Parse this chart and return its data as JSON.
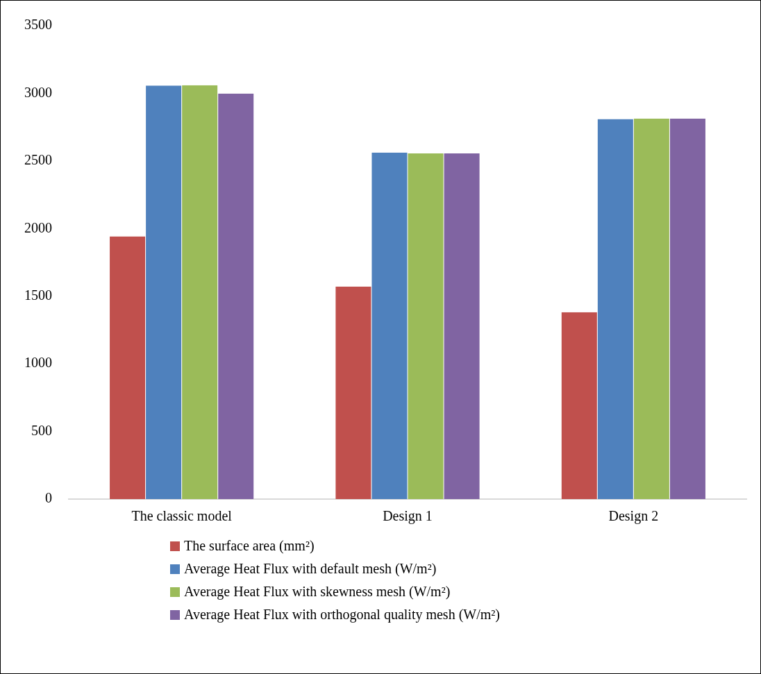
{
  "chart_data": {
    "type": "bar",
    "categories": [
      "The classic model",
      "Design 1",
      "Design 2"
    ],
    "series": [
      {
        "name": "The surface area (mm²)",
        "color": "#c0504d",
        "values": [
          1943,
          1572,
          1382
        ]
      },
      {
        "name": "Average Heat Flux with default mesh (W/m²)",
        "color": "#4f81bd",
        "values": [
          3057,
          2562,
          2810
        ]
      },
      {
        "name": "Average Heat Flux with skewness mesh (W/m²)",
        "color": "#9bbb59",
        "values": [
          3060,
          2556,
          2814
        ]
      },
      {
        "name": "Average Heat Flux with orthogonal quality mesh (W/m²)",
        "color": "#8064a2",
        "values": [
          2998,
          2556,
          2814
        ]
      }
    ],
    "ylim": [
      0,
      3500
    ],
    "yticks": [
      0,
      500,
      1000,
      1500,
      2000,
      2500,
      3000,
      3500
    ],
    "grid": false,
    "legend": "bottom"
  }
}
